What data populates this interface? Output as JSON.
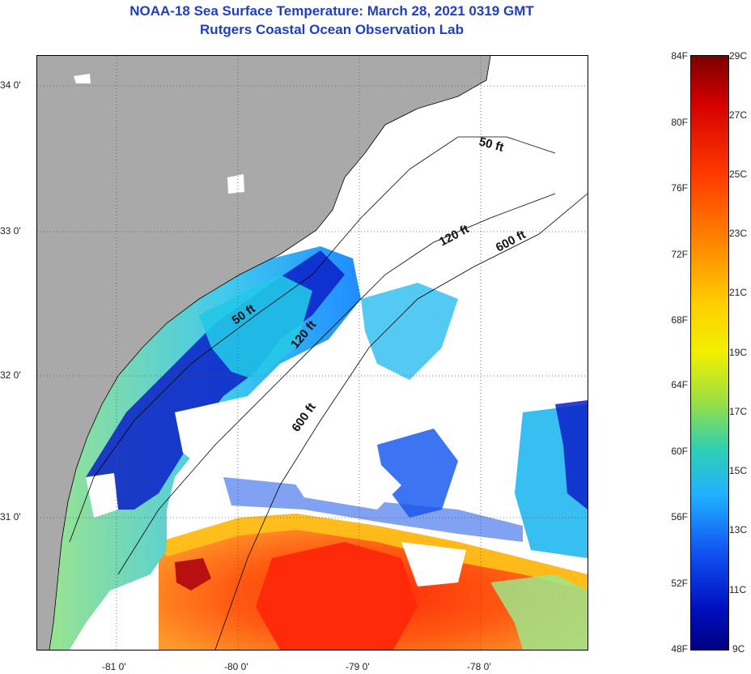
{
  "title": {
    "line1": "NOAA-18 Sea Surface Temperature:  March 28, 2021 0319 GMT",
    "line2": "Rutgers Coastal Ocean Observation Lab"
  },
  "map": {
    "lat_labels": [
      "34 0'",
      "33 0'",
      "32 0'",
      "31 0'"
    ],
    "lon_labels": [
      "-81 0'",
      "-80 0'",
      "-79 0'",
      "-78 0'"
    ],
    "contour_labels": [
      {
        "text": "50 ft"
      },
      {
        "text": "120 ft"
      },
      {
        "text": "600 ft"
      },
      {
        "text": "50 ft"
      },
      {
        "text": "120 ft"
      },
      {
        "text": "600 ft"
      }
    ],
    "colors": {
      "land": "#a9a9a9",
      "cloud": "#ffffff",
      "cold": "#0a1fc8",
      "cool": "#1fb4ff",
      "mild": "#7fe38a",
      "warm": "#ff7a1a",
      "hot": "#ff3010",
      "hottest": "#b81010"
    }
  },
  "colorbar": {
    "fahrenheit": [
      "84F",
      "80F",
      "76F",
      "72F",
      "68F",
      "64F",
      "60F",
      "56F",
      "52F",
      "48F"
    ],
    "celsius": [
      "29C",
      "27C",
      "25C",
      "23C",
      "21C",
      "19C",
      "17C",
      "15C",
      "13C",
      "11C",
      "9C"
    ]
  }
}
